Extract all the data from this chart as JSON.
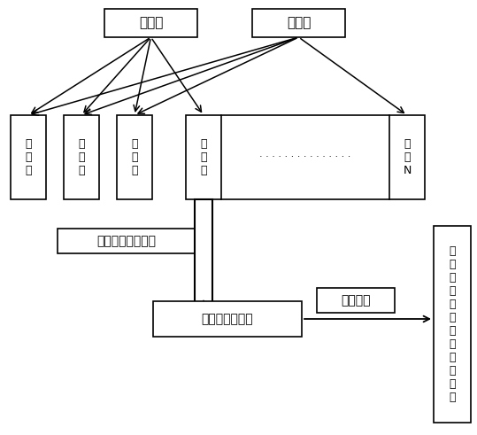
{
  "bg_color": "#ffffff",
  "line_color": "#000000",
  "box_color": "#ffffff",
  "font_color": "#000000",
  "sat1_label": "卫星一",
  "sat2_label": "卫星二",
  "base1_label": "基\n站\n一",
  "base2_label": "基\n站\n二",
  "base3_label": "基\n站\n三",
  "base4_label": "基\n站\n四",
  "baseN_label": "基\n站\nN",
  "collect_label": "收集卫星原始数据",
  "server_label": "卫星数据服务器",
  "analysis_label": "数据分析",
  "result_label": "精\n密\n计\n算\n出\n卫\n星\n的\n轨\n道\n参\n数",
  "dots": "· · · · · · · · · · · · · · ·",
  "figsize": [
    5.39,
    4.91
  ],
  "dpi": 100
}
